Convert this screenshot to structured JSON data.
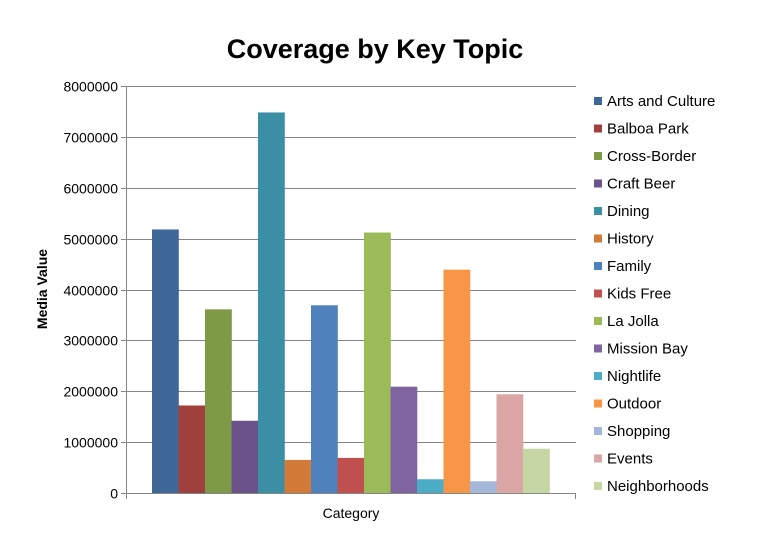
{
  "chart_data": {
    "type": "bar",
    "title": "Coverage by Key Topic",
    "xlabel": "Category",
    "ylabel": "Media Value",
    "ylim": [
      0,
      8000000
    ],
    "yticks": [
      "0",
      "1000000",
      "2000000",
      "3000000",
      "4000000",
      "5000000",
      "6000000",
      "7000000",
      "8000000"
    ],
    "grid": true,
    "legend": "right",
    "series": [
      {
        "name": "Arts and Culture",
        "value": 5180000,
        "color": "#3F6797"
      },
      {
        "name": "Balboa Park",
        "value": 1720000,
        "color": "#A0403D"
      },
      {
        "name": "Cross-Border",
        "value": 3610000,
        "color": "#7E9A47"
      },
      {
        "name": "Craft Beer",
        "value": 1420000,
        "color": "#69538A"
      },
      {
        "name": "Dining",
        "value": 7480000,
        "color": "#3A8FA5"
      },
      {
        "name": "History",
        "value": 650000,
        "color": "#D27B38"
      },
      {
        "name": "Family",
        "value": 3690000,
        "color": "#4F81BD"
      },
      {
        "name": "Kids Free",
        "value": 690000,
        "color": "#C0504D"
      },
      {
        "name": "La Jolla",
        "value": 5120000,
        "color": "#9BBB59"
      },
      {
        "name": "Mission Bay",
        "value": 2090000,
        "color": "#8064A2"
      },
      {
        "name": "Nightlife",
        "value": 270000,
        "color": "#4BACC6"
      },
      {
        "name": "Outdoor",
        "value": 4390000,
        "color": "#F79646"
      },
      {
        "name": "Shopping",
        "value": 230000,
        "color": "#A4B7D8"
      },
      {
        "name": "Events",
        "value": 1940000,
        "color": "#D9A6A5"
      },
      {
        "name": "Neighborhoods",
        "value": 870000,
        "color": "#C5D6A3"
      }
    ]
  }
}
